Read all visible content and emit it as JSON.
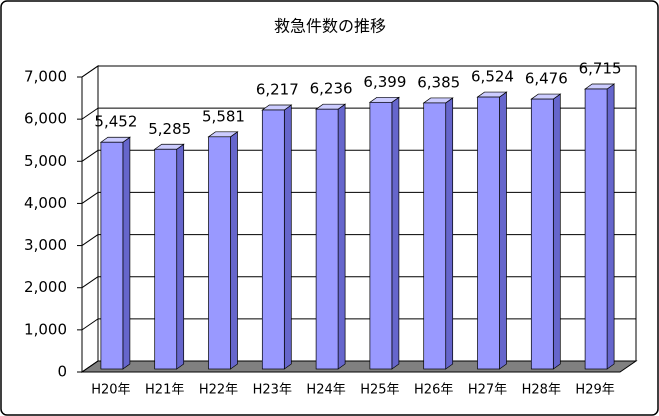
{
  "chart_data": {
    "type": "bar3d",
    "title": "救急件数の推移",
    "categories": [
      "H20年",
      "H21年",
      "H22年",
      "H23年",
      "H24年",
      "H25年",
      "H26年",
      "H27年",
      "H28年",
      "H29年"
    ],
    "values": [
      5452,
      5285,
      5581,
      6217,
      6236,
      6399,
      6385,
      6524,
      6476,
      6715
    ],
    "value_labels": [
      "5,452",
      "5,285",
      "5,581",
      "6,217",
      "6,236",
      "6,399",
      "6,385",
      "6,524",
      "6,476",
      "6,715"
    ],
    "color": "#9999ff",
    "ylim": [
      0,
      7000
    ],
    "yticks": [
      0,
      {
        "value": 1000,
        "label": "1,000"
      },
      {
        "value": 2000,
        "label": "2,000"
      },
      {
        "value": 3000,
        "label": "3,000"
      },
      {
        "value": 4000,
        "label": "4,000"
      },
      {
        "value": 5000,
        "label": "5,000"
      },
      {
        "value": 6000,
        "label": "6,000"
      },
      {
        "value": 7000,
        "label": "7,000"
      }
    ],
    "grid": true
  }
}
